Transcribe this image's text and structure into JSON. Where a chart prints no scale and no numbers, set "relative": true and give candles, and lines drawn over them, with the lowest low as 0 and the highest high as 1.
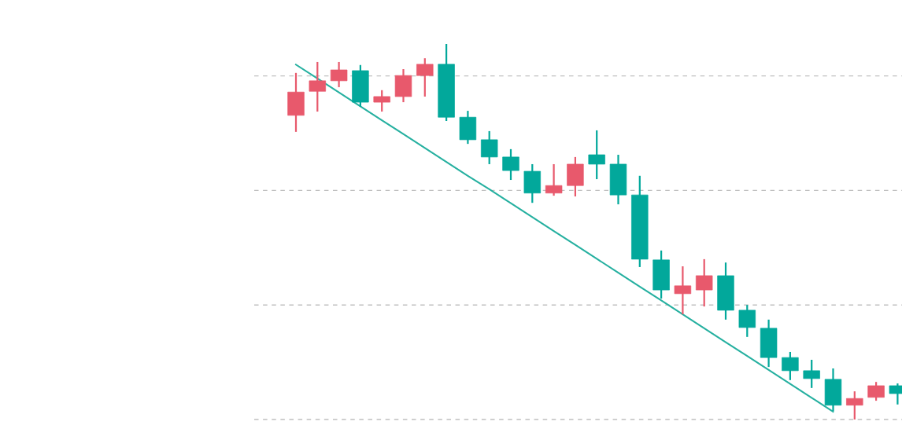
{
  "chart_data": {
    "type": "candlestick",
    "relative": true,
    "grid": "y",
    "categories": [
      null,
      null,
      null,
      null,
      null,
      null,
      null,
      null,
      null,
      null,
      null,
      null,
      null,
      null,
      null,
      null,
      null,
      null,
      null,
      null,
      null,
      null,
      null,
      null,
      null,
      null,
      null,
      null,
      null
    ],
    "ohlc": [
      [
        0.81,
        0.923,
        0.766,
        0.872
      ],
      [
        0.874,
        0.952,
        0.82,
        0.902
      ],
      [
        0.902,
        0.952,
        0.885,
        0.931
      ],
      [
        0.929,
        0.944,
        0.833,
        0.845
      ],
      [
        0.845,
        0.877,
        0.82,
        0.86
      ],
      [
        0.86,
        0.933,
        0.845,
        0.916
      ],
      [
        0.916,
        0.962,
        0.86,
        0.946
      ],
      [
        0.946,
        1,
        0.795,
        0.805
      ],
      [
        0.805,
        0.822,
        0.734,
        0.745
      ],
      [
        0.745,
        0.768,
        0.68,
        0.699
      ],
      [
        0.699,
        0.72,
        0.638,
        0.663
      ],
      [
        0.661,
        0.68,
        0.577,
        0.603
      ],
      [
        0.603,
        0.68,
        0.596,
        0.623
      ],
      [
        0.623,
        0.699,
        0.594,
        0.68
      ],
      [
        0.705,
        0.77,
        0.64,
        0.68
      ],
      [
        0.68,
        0.705,
        0.573,
        0.598
      ],
      [
        0.598,
        0.649,
        0.406,
        0.427
      ],
      [
        0.425,
        0.45,
        0.322,
        0.345
      ],
      [
        0.335,
        0.408,
        0.28,
        0.356
      ],
      [
        0.345,
        0.427,
        0.301,
        0.383
      ],
      [
        0.383,
        0.418,
        0.266,
        0.291
      ],
      [
        0.291,
        0.305,
        0.22,
        0.245
      ],
      [
        0.243,
        0.266,
        0.14,
        0.165
      ],
      [
        0.165,
        0.18,
        0.105,
        0.13
      ],
      [
        0.13,
        0.159,
        0.084,
        0.109
      ],
      [
        0.107,
        0.136,
        0.023,
        0.038
      ],
      [
        0.038,
        0.075,
        0,
        0.056
      ],
      [
        0.059,
        0.1,
        0.05,
        0.09
      ],
      [
        0.09,
        0.096,
        0.04,
        0.069
      ]
    ],
    "colors": [
      "#e8596c",
      "#e8596c",
      "#e8596c",
      "#02a89b",
      "#e8596c",
      "#e8596c",
      "#e8596c",
      "#02a89b",
      "#02a89b",
      "#02a89b",
      "#02a89b",
      "#02a89b",
      "#e8596c",
      "#e8596c",
      "#02a89b",
      "#02a89b",
      "#02a89b",
      "#02a89b",
      "#e8596c",
      "#e8596c",
      "#02a89b",
      "#02a89b",
      "#02a89b",
      "#02a89b",
      "#02a89b",
      "#02a89b",
      "#e8596c",
      "#e8596c",
      "#02a89b"
    ],
    "series": [
      {
        "type": "line",
        "color": "#26b0a0",
        "values": [
          0.945,
          0.908,
          0.871,
          0.834,
          0.797,
          0.76,
          0.723,
          0.686,
          0.649,
          0.613,
          0.576,
          0.539,
          0.502,
          0.465,
          0.428,
          0.391,
          0.354,
          0.317,
          0.28,
          0.243,
          0.206,
          0.169,
          0.132,
          0.095,
          0.058,
          0.021,
          null,
          null,
          null
        ]
      }
    ]
  }
}
